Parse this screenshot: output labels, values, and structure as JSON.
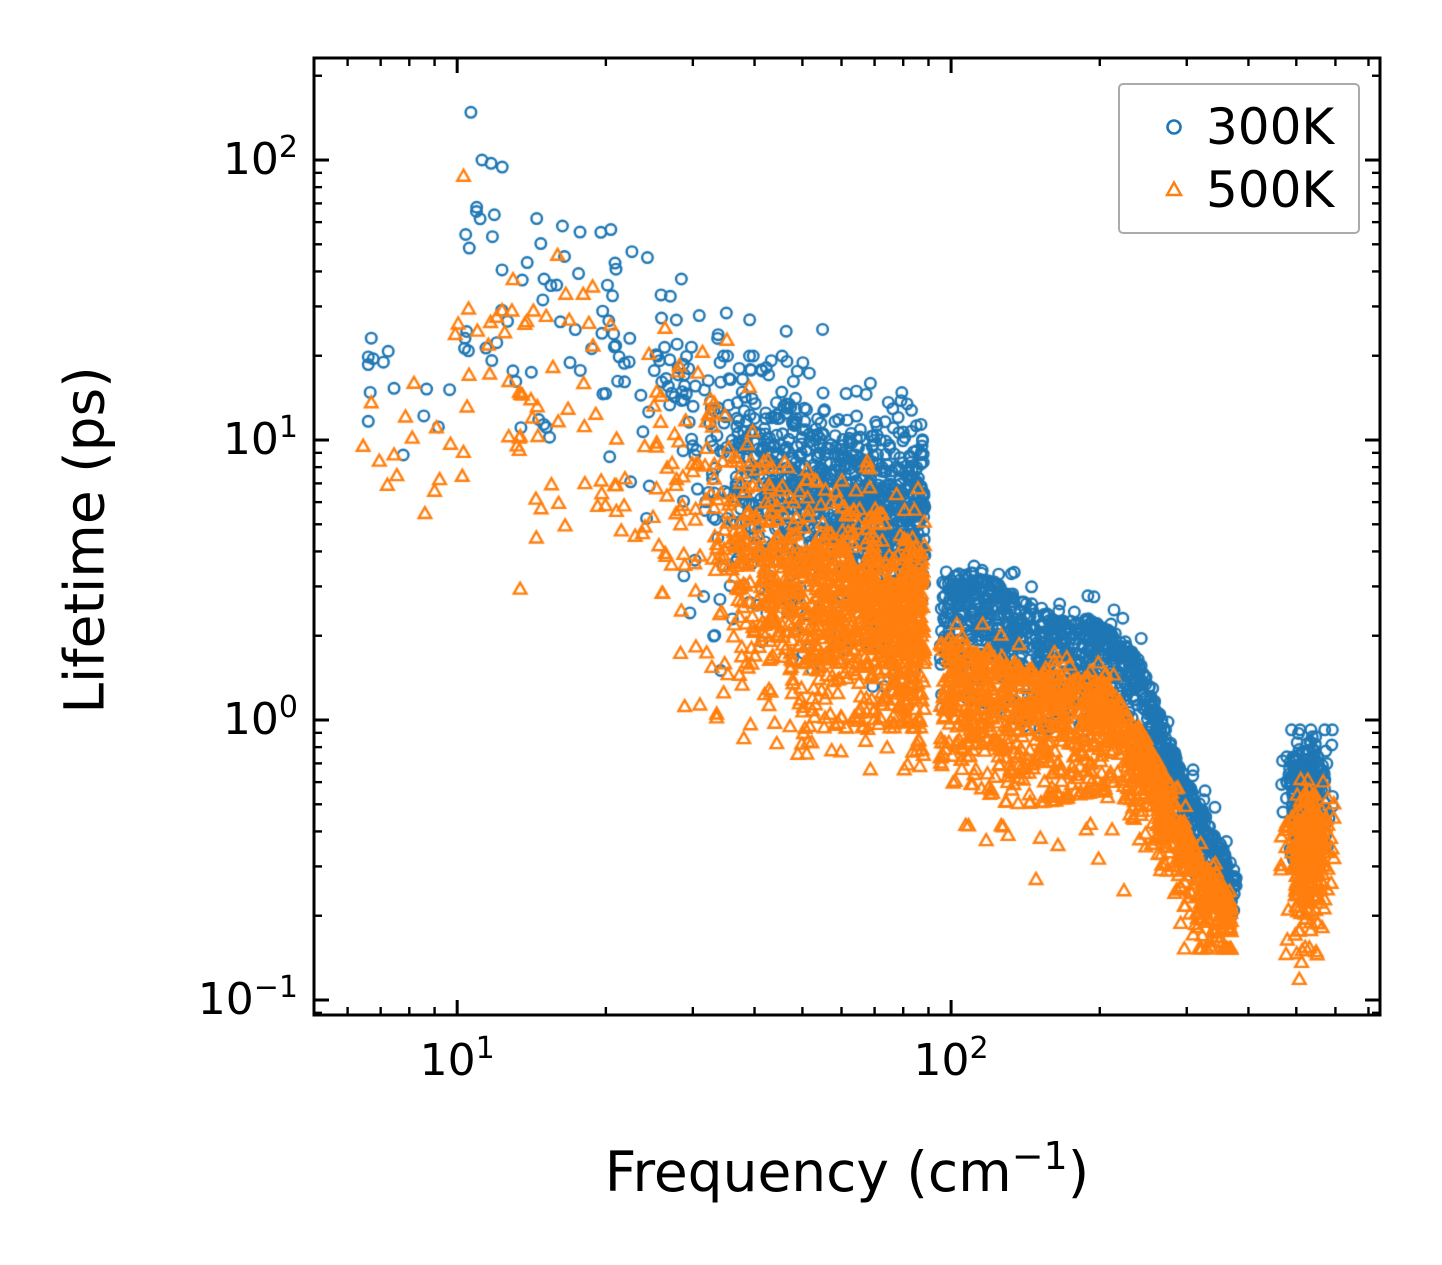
{
  "figure": {
    "background": "#ffffff",
    "plot_border_color": "#000000"
  },
  "chart_data": {
    "type": "scatter",
    "log_x": true,
    "log_y": true,
    "grid": false,
    "title": "",
    "xlabel": {
      "pre": "Frequency (cm",
      "sup": "−1",
      "post": ")"
    },
    "ylabel": "Lifetime (ps)",
    "x_range": [
      5.13,
      738.6
    ],
    "y_range": [
      0.0884,
      231.4
    ],
    "x_major_ticks": [
      {
        "value": 10,
        "base": "10",
        "exp": "1"
      },
      {
        "value": 100,
        "base": "10",
        "exp": "2"
      }
    ],
    "x_minor_ticks": [
      6,
      7,
      8,
      9,
      20,
      30,
      40,
      50,
      60,
      70,
      80,
      90,
      200,
      300,
      400,
      500,
      600,
      700
    ],
    "y_major_ticks": [
      {
        "value": 100,
        "base": "10",
        "exp": "2"
      },
      {
        "value": 10,
        "base": "10",
        "exp": "1"
      },
      {
        "value": 1,
        "base": "10",
        "exp": "0"
      },
      {
        "value": 0.1,
        "base": "10",
        "exp": "−1"
      }
    ],
    "y_minor_ticks": [
      200,
      90,
      80,
      70,
      60,
      50,
      40,
      30,
      20,
      9,
      8,
      7,
      6,
      5,
      4,
      3,
      2,
      0.9,
      0.8,
      0.7,
      0.6,
      0.5,
      0.4,
      0.3,
      0.2,
      0.09
    ],
    "legend": {
      "position": "upper right",
      "entries": [
        {
          "label": "300K",
          "marker": "circle",
          "color": "#1f77b4"
        },
        {
          "label": "500K",
          "marker": "triangle",
          "color": "#ff7f0e"
        }
      ]
    },
    "series": [
      {
        "name": "300K",
        "marker": "circle",
        "color": "#1f77b4",
        "seed": 20240321,
        "anchor_points": [
          [
            6.7,
            23.1
          ],
          [
            7.45,
            15.3
          ],
          [
            10.66,
            148.0
          ]
        ],
        "clusters": [
          {
            "kind": "blob",
            "count": 12,
            "u_mean": 0.9,
            "u_sd": 0.06,
            "u_clamp": [
              0.82,
              1.0
            ],
            "v_mean": 1.22,
            "v_sd": 0.14,
            "tail_frac": 0,
            "tail_extra": 0,
            "v_clamp": [
              0.92,
              1.45
            ]
          },
          {
            "kind": "trend",
            "count": 95,
            "u_min": 1.0,
            "u_max": 1.56,
            "u_pow": 1,
            "u_ref": 1.0,
            "v0": 1.58,
            "slope": -0.95,
            "v_sd": 0.26,
            "v_clamp": [
              0.72,
              2.0
            ]
          },
          {
            "kind": "trend",
            "count": 130,
            "u_min": 1.4,
            "u_max": 1.947,
            "u_pow": 1,
            "u_ref": 1.4,
            "v0": 1.3,
            "slope": -1.15,
            "v_sd": 0.16,
            "v_clamp": [
              0.5,
              1.78
            ]
          },
          {
            "kind": "trend",
            "count": 820,
            "u_min": 1.5,
            "u_max": 1.947,
            "u_pow": 0.6,
            "u_ref": 1.7,
            "v0": 0.83,
            "slope": -0.5,
            "v_sd": 0.165,
            "v_clamp": [
              0.32,
              1.3
            ]
          },
          {
            "kind": "trend",
            "count": 40,
            "u_min": 1.45,
            "u_max": 1.75,
            "u_pow": 1,
            "u_ref": 1.6,
            "v0": 0.52,
            "slope": -0.4,
            "v_sd": 0.17,
            "v_clamp": [
              0.1,
              0.9
            ]
          },
          {
            "kind": "trend",
            "count": 30,
            "u_min": 1.6,
            "u_max": 1.947,
            "u_pow": 0.7,
            "u_ref": 1.8,
            "v0": 0.3,
            "slope": -0.3,
            "v_sd": 0.1,
            "v_clamp": [
              0.12,
              0.5
            ]
          },
          {
            "kind": "band",
            "count": 1150,
            "u_min": 1.978,
            "u_max": 2.578,
            "u_pow": 1,
            "top": [
              [
                1.978,
                0.5
              ],
              [
                2.05,
                0.5
              ],
              [
                2.16,
                0.43
              ],
              [
                2.3,
                0.35
              ],
              [
                2.38,
                0.19
              ],
              [
                2.45,
                -0.09
              ],
              [
                2.51,
                -0.28
              ],
              [
                2.578,
                -0.55
              ]
            ],
            "width": [
              [
                1.978,
                0.46
              ],
              [
                2.1,
                0.46
              ],
              [
                2.578,
                0.2
              ]
            ],
            "depth_div": 2.2,
            "tail_frac": 0.04,
            "tail_extra": 0.18,
            "above_frac": 0.02,
            "above_amp": 0.1,
            "wave_amp": 0.035,
            "wave_freq": 21,
            "wave_phase": 0,
            "v_clamp": [
              -0.7,
              0.62
            ]
          },
          {
            "kind": "blob",
            "count": 260,
            "u_mean": 2.72,
            "u_sd": 0.021,
            "u_clamp": [
              2.667,
              2.772
            ],
            "v_mean": -0.24,
            "v_sd": 0.1,
            "tail_frac": 0.15,
            "tail_extra": 0.2,
            "v_clamp": [
              -0.5,
              -0.035
            ]
          }
        ]
      },
      {
        "name": "500K",
        "marker": "triangle",
        "color": "#ff7f0e",
        "seed": 987654321,
        "anchor_points": [
          [
            6.7,
            13.5
          ],
          [
            7.45,
            8.8
          ],
          [
            10.3,
            87.0
          ]
        ],
        "clusters": [
          {
            "kind": "blob",
            "count": 12,
            "u_mean": 0.9,
            "u_sd": 0.06,
            "u_clamp": [
              0.8,
              1.0
            ],
            "v_mean": 0.98,
            "v_sd": 0.14,
            "tail_frac": 0,
            "tail_extra": 0,
            "v_clamp": [
              0.68,
              1.2
            ]
          },
          {
            "kind": "trend",
            "count": 100,
            "u_min": 0.99,
            "u_max": 1.56,
            "u_pow": 1,
            "u_ref": 1.0,
            "v0": 1.3,
            "slope": -0.95,
            "v_sd": 0.26,
            "v_clamp": [
              0.45,
              1.8
            ]
          },
          {
            "kind": "trend",
            "count": 140,
            "u_min": 1.4,
            "u_max": 1.947,
            "u_pow": 1,
            "u_ref": 1.4,
            "v0": 0.95,
            "slope": -1.05,
            "v_sd": 0.18,
            "v_clamp": [
              0.2,
              1.45
            ]
          },
          {
            "kind": "trend",
            "count": 900,
            "u_min": 1.52,
            "u_max": 1.947,
            "u_pow": 0.6,
            "u_ref": 1.7,
            "v0": 0.45,
            "slope": -0.52,
            "v_sd": 0.185,
            "v_clamp": [
              -0.03,
              0.92
            ]
          },
          {
            "kind": "trend",
            "count": 55,
            "u_min": 1.45,
            "u_max": 1.78,
            "u_pow": 1,
            "u_ref": 1.6,
            "v0": 0.2,
            "slope": -0.45,
            "v_sd": 0.16,
            "v_clamp": [
              -0.15,
              0.55
            ]
          },
          {
            "kind": "trend",
            "count": 45,
            "u_min": 1.62,
            "u_max": 1.947,
            "u_pow": 0.7,
            "u_ref": 1.8,
            "v0": -0.02,
            "slope": -0.25,
            "v_sd": 0.09,
            "v_clamp": [
              -0.18,
              0.2
            ]
          },
          {
            "kind": "band",
            "count": 1200,
            "u_min": 1.978,
            "u_max": 2.568,
            "u_pow": 1,
            "top": [
              [
                1.978,
                0.24
              ],
              [
                2.05,
                0.26
              ],
              [
                2.17,
                0.21
              ],
              [
                2.31,
                0.11
              ],
              [
                2.385,
                -0.05
              ],
              [
                2.43,
                -0.18
              ],
              [
                2.47,
                -0.33
              ],
              [
                2.52,
                -0.51
              ],
              [
                2.568,
                -0.63
              ]
            ],
            "width": [
              [
                1.978,
                0.5
              ],
              [
                2.1,
                0.52
              ],
              [
                2.568,
                0.24
              ]
            ],
            "depth_div": 2.0,
            "tail_frac": 0.08,
            "tail_extra": 0.3,
            "above_frac": 0.02,
            "above_amp": 0.08,
            "wave_amp": 0.03,
            "wave_freq": 19,
            "wave_phase": 1.2,
            "v_clamp": [
              -0.82,
              0.34
            ]
          },
          {
            "kind": "blob",
            "count": 285,
            "u_mean": 2.722,
            "u_sd": 0.021,
            "u_clamp": [
              2.668,
              2.775
            ],
            "v_mean": -0.44,
            "v_sd": 0.1,
            "tail_frac": 0.25,
            "tail_extra": 0.35,
            "v_clamp": [
              -0.93,
              -0.215
            ]
          }
        ]
      }
    ]
  }
}
